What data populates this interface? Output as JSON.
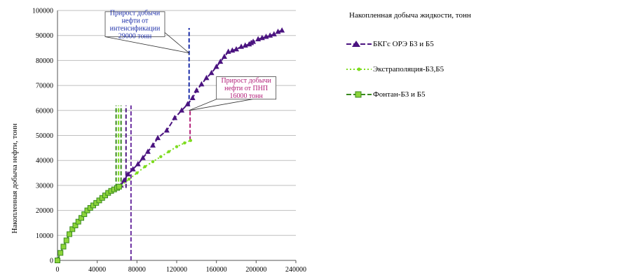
{
  "chart_data": {
    "type": "line",
    "ylabel": "Накопленная добыча нефти, тонн",
    "xlabel": "",
    "xlim": [
      0,
      240000
    ],
    "ylim": [
      0,
      100000
    ],
    "x_ticks": [
      "0",
      "40000",
      "80000",
      "120000",
      "160000",
      "200000",
      "240000"
    ],
    "y_ticks": [
      "0",
      "10000",
      "20000",
      "30000",
      "40000",
      "50000",
      "60000",
      "70000",
      "80000",
      "90000",
      "100000"
    ],
    "grid": "horizontal",
    "legend_title": "Накопленная добыча жидкости, тонн",
    "series": [
      {
        "name": "БКГс ОРЭ Б3 и Б5",
        "color": "#4b1480",
        "marker": "triangle",
        "x": [
          64000,
          67000,
          71000,
          76000,
          81000,
          86000,
          91000,
          96000,
          101000,
          110000,
          118000,
          125000,
          131000,
          136000,
          140000,
          145000,
          150000,
          155000,
          160000,
          164000,
          168000,
          172000,
          176000,
          180000,
          185000,
          189000,
          193000,
          195000,
          197000,
          202000,
          206000,
          210000,
          214000,
          218000,
          222000,
          226000
        ],
        "y": [
          30000,
          32000,
          34500,
          36500,
          38500,
          41000,
          43500,
          46000,
          49000,
          52000,
          57000,
          60000,
          62500,
          65000,
          68000,
          70500,
          73000,
          75000,
          77500,
          79500,
          81500,
          83500,
          84000,
          84500,
          85500,
          86000,
          86500,
          87000,
          87500,
          88500,
          89000,
          89500,
          90000,
          90500,
          91500,
          92000
        ]
      },
      {
        "name": "Экстраполяция-Б3,Б5",
        "color": "#7ddc1f",
        "marker": "dot",
        "x": [
          64000,
          72000,
          80000,
          88000,
          96000,
          104000,
          112000,
          120000,
          128000,
          134000
        ],
        "y": [
          30000,
          32500,
          35000,
          37500,
          39500,
          41500,
          43500,
          45500,
          47000,
          48000
        ]
      },
      {
        "name": "Фонтан-Б3 и Б5",
        "color": "#3a8a1f",
        "marker": "square",
        "x": [
          0,
          3000,
          6000,
          9000,
          12000,
          15000,
          18000,
          21000,
          24000,
          27000,
          30000,
          33000,
          36000,
          39000,
          42000,
          45000,
          48000,
          51000,
          54000,
          57000,
          60000,
          62000
        ],
        "y": [
          0,
          3000,
          5500,
          8000,
          10500,
          12500,
          14000,
          15500,
          17000,
          18500,
          20000,
          21000,
          22000,
          23000,
          24000,
          25000,
          26000,
          27000,
          27800,
          28400,
          29000,
          29500
        ]
      }
    ],
    "vertical_lines": [
      {
        "x": 59000,
        "y": [
          29000,
          62000
        ],
        "color": "#3a8a1f"
      },
      {
        "x": 61500,
        "y": [
          29000,
          62000
        ],
        "color": "#7ddc1f"
      },
      {
        "x": 64000,
        "y": [
          29000,
          62000
        ],
        "color": "#3a8a1f"
      },
      {
        "x": 69000,
        "y": [
          29000,
          62000
        ],
        "color": "#4b1480"
      },
      {
        "x": 74000,
        "y": [
          0,
          62000
        ],
        "color": "#6a2d9f"
      },
      {
        "x": 132500,
        "y": [
          62000,
          93000
        ],
        "color": "#1a2ca8"
      },
      {
        "x": 133500,
        "y": [
          48000,
          60000
        ],
        "color": "#b3207a"
      }
    ],
    "annotations": [
      {
        "text": [
          "Прирост добычи",
          "нефти от",
          "интенсификации",
          "29000 тонн"
        ],
        "color": "#1a2ca8",
        "box_x": [
          48000,
          108000
        ],
        "box_y": [
          99500,
          89500
        ],
        "pointer_xy": [
          132500,
          83000
        ]
      },
      {
        "text": [
          "Прирост добычи",
          "нефти от ПНП",
          "16000 тонн"
        ],
        "color": "#b3207a",
        "box_x": [
          160000,
          220000
        ],
        "box_y": [
          73500,
          64500
        ],
        "pointer_xy": [
          132500,
          60000
        ]
      }
    ]
  }
}
